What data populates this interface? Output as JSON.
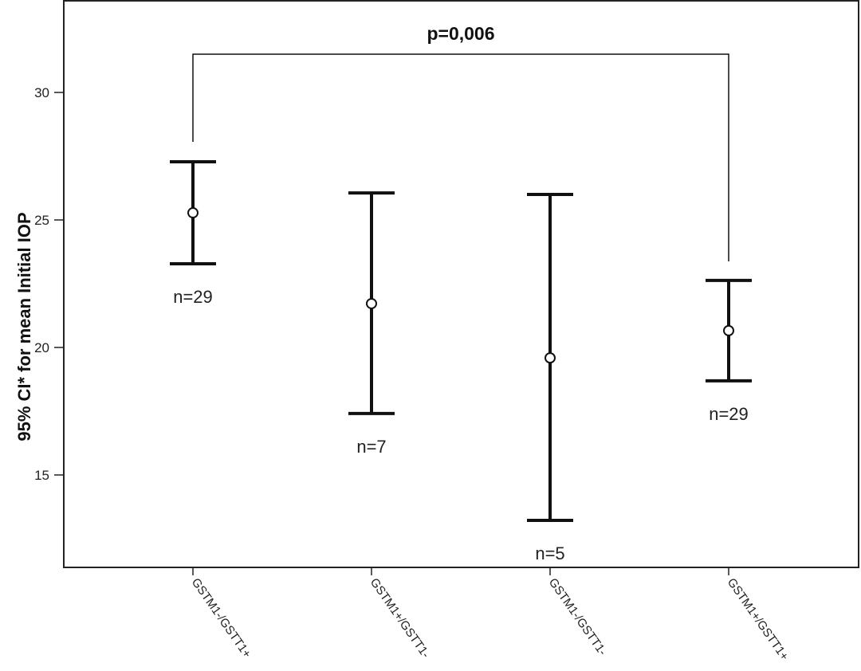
{
  "chart_data": {
    "type": "errorbar",
    "title": "",
    "xlabel": "",
    "ylabel": "95% CI* for mean Initial IOP",
    "ylim": [
      11.4,
      33.6
    ],
    "yticks": [
      15,
      20,
      25,
      30
    ],
    "grid": false,
    "categories": [
      "GSTM1-/GSTT1+",
      "GSTM1+/GSTT1-",
      "GSTM1-/GSTT1-",
      "GSTM1+/GSTT1+"
    ],
    "means": [
      25.28,
      21.72,
      19.59,
      20.66
    ],
    "upper": [
      27.28,
      26.06,
      26.0,
      22.63
    ],
    "lower": [
      23.28,
      17.41,
      13.22,
      18.69
    ],
    "n_labels": [
      "n=29",
      "n=7",
      "n=5",
      "n=29"
    ],
    "annotation": {
      "text": "p=0,006",
      "from": 0,
      "to": 3
    }
  }
}
